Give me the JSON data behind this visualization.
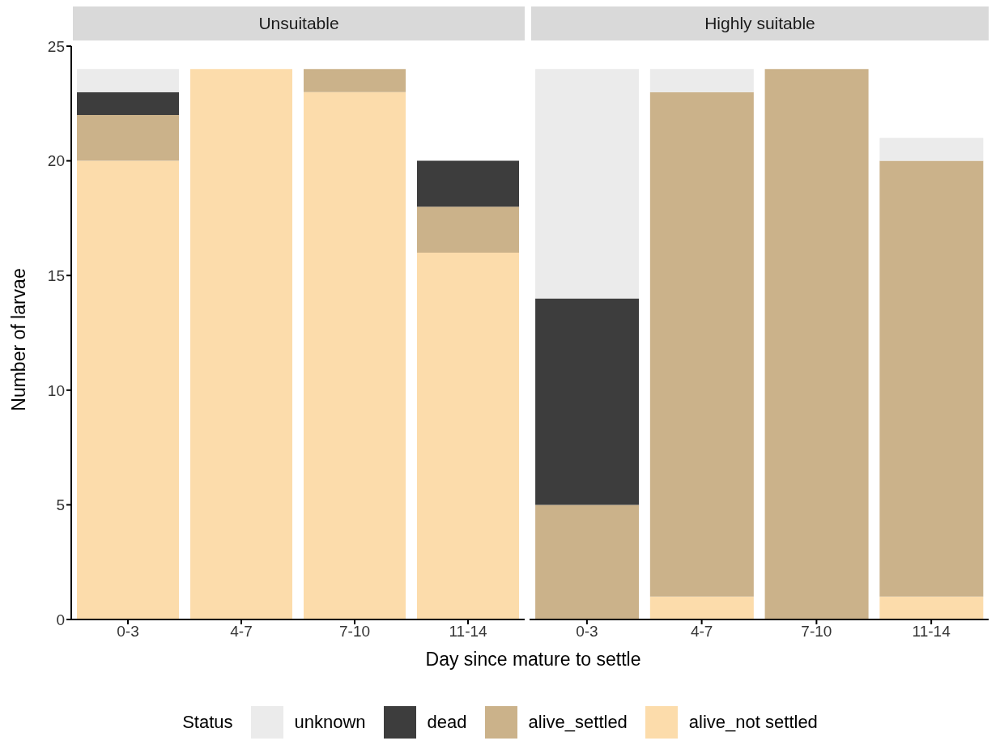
{
  "chart_data": [
    {
      "type": "bar",
      "title": "Unsuitable",
      "xlabel": "Day since mature to settle",
      "ylabel": "Number of larvae",
      "legend": "bottom",
      "legend_title": "Status",
      "stacked": true,
      "categories": [
        "0-3",
        "4-7",
        "7-10",
        "11-14"
      ],
      "ylim": [
        0,
        25
      ],
      "yticks": [
        0,
        5,
        10,
        15,
        20,
        25
      ],
      "series": [
        {
          "name": "alive_not settled",
          "color": "#fcdcab",
          "values": [
            20,
            24,
            23,
            16
          ]
        },
        {
          "name": "alive_settled",
          "color": "#cbb28a",
          "values": [
            2,
            0,
            1,
            2
          ]
        },
        {
          "name": "dead",
          "color": "#3d3d3d",
          "values": [
            1,
            0,
            0,
            2
          ]
        },
        {
          "name": "unknown",
          "color": "#ebebeb",
          "values": [
            1,
            0,
            0,
            0
          ]
        }
      ]
    },
    {
      "type": "bar",
      "title": "Highly suitable",
      "stacked": true,
      "tick_labels": "x",
      "categories": [
        "0-3",
        "4-7",
        "7-10",
        "11-14"
      ],
      "ylim": [
        0,
        25
      ],
      "series": [
        {
          "color": "#fcdcab",
          "values": [
            0,
            1,
            0,
            1
          ]
        },
        {
          "color": "#cbb28a",
          "values": [
            5,
            22,
            24,
            19
          ]
        },
        {
          "color": "#3d3d3d",
          "values": [
            9,
            0,
            0,
            0
          ]
        },
        {
          "color": "#ebebeb",
          "values": [
            10,
            1,
            0,
            1
          ]
        }
      ]
    }
  ]
}
